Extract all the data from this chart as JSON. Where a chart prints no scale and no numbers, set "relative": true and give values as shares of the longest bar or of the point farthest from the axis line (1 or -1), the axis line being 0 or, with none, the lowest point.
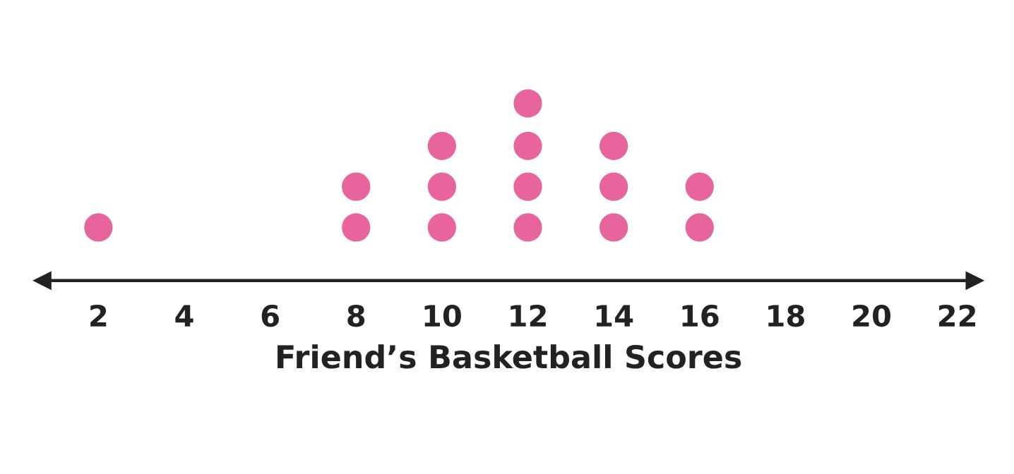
{
  "chart_data": {
    "type": "scatter",
    "xlabel": "Friend’s Basketball Scores",
    "x": [
      2,
      8,
      8,
      10,
      10,
      10,
      12,
      12,
      12,
      12,
      14,
      14,
      14,
      16,
      16
    ],
    "values": [
      0.3,
      0.3,
      0.53,
      0.3,
      0.53,
      0.76,
      0.3,
      0.53,
      0.76,
      1,
      0.3,
      0.53,
      0.76,
      0.3,
      0.53
    ],
    "color": "#e8649c",
    "relative": true,
    "marker": "circle",
    "xlim": [
      0.7,
      22.4
    ],
    "xticks": [
      2,
      4,
      6,
      8,
      10,
      12,
      14,
      16,
      18,
      20,
      22
    ],
    "grid": false
  }
}
